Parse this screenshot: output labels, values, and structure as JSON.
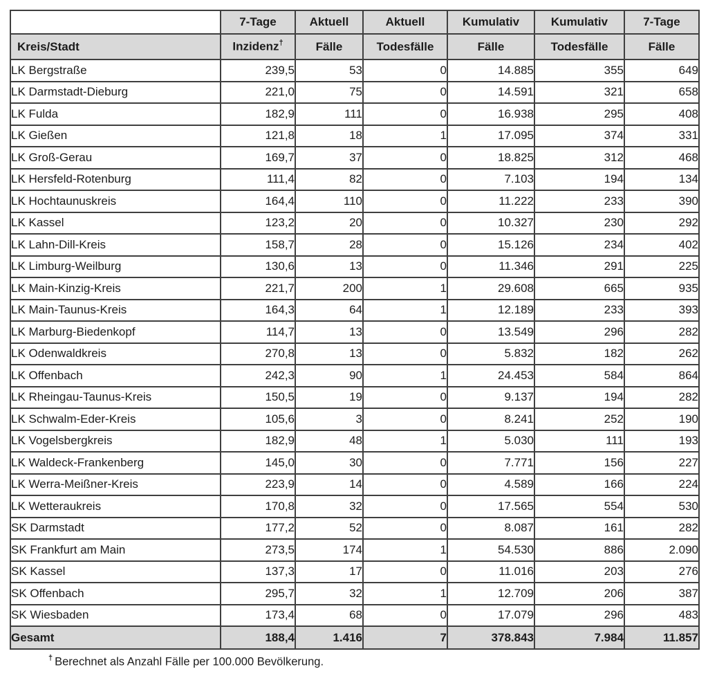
{
  "colors": {
    "header_bg": "#d9d9d9",
    "border": "#3f3f3f",
    "row_bg": "#ffffff",
    "text": "#1c1c1c"
  },
  "table": {
    "group_headers": [
      "7-Tage",
      "Aktuell",
      "Aktuell",
      "Kumulativ",
      "Kumulativ",
      "7-Tage"
    ],
    "sub_headers": {
      "name": "Kreis/Stadt",
      "cols": [
        "Inzidenz",
        "Fälle",
        "Todesfälle",
        "Fälle",
        "Todesfälle",
        "Fälle"
      ],
      "inzidenz_marker": "†"
    },
    "rows": [
      {
        "name": "LK Bergstraße",
        "values": [
          "239,5",
          "53",
          "0",
          "14.885",
          "355",
          "649"
        ]
      },
      {
        "name": "LK Darmstadt-Dieburg",
        "values": [
          "221,0",
          "75",
          "0",
          "14.591",
          "321",
          "658"
        ]
      },
      {
        "name": "LK Fulda",
        "values": [
          "182,9",
          "111",
          "0",
          "16.938",
          "295",
          "408"
        ]
      },
      {
        "name": "LK Gießen",
        "values": [
          "121,8",
          "18",
          "1",
          "17.095",
          "374",
          "331"
        ]
      },
      {
        "name": "LK Groß-Gerau",
        "values": [
          "169,7",
          "37",
          "0",
          "18.825",
          "312",
          "468"
        ]
      },
      {
        "name": "LK Hersfeld-Rotenburg",
        "values": [
          "111,4",
          "82",
          "0",
          "7.103",
          "194",
          "134"
        ]
      },
      {
        "name": "LK Hochtaunuskreis",
        "values": [
          "164,4",
          "110",
          "0",
          "11.222",
          "233",
          "390"
        ]
      },
      {
        "name": "LK Kassel",
        "values": [
          "123,2",
          "20",
          "0",
          "10.327",
          "230",
          "292"
        ]
      },
      {
        "name": "LK Lahn-Dill-Kreis",
        "values": [
          "158,7",
          "28",
          "0",
          "15.126",
          "234",
          "402"
        ]
      },
      {
        "name": "LK Limburg-Weilburg",
        "values": [
          "130,6",
          "13",
          "0",
          "11.346",
          "291",
          "225"
        ]
      },
      {
        "name": "LK Main-Kinzig-Kreis",
        "values": [
          "221,7",
          "200",
          "1",
          "29.608",
          "665",
          "935"
        ]
      },
      {
        "name": "LK Main-Taunus-Kreis",
        "values": [
          "164,3",
          "64",
          "1",
          "12.189",
          "233",
          "393"
        ]
      },
      {
        "name": "LK Marburg-Biedenkopf",
        "values": [
          "114,7",
          "13",
          "0",
          "13.549",
          "296",
          "282"
        ]
      },
      {
        "name": "LK Odenwaldkreis",
        "values": [
          "270,8",
          "13",
          "0",
          "5.832",
          "182",
          "262"
        ]
      },
      {
        "name": "LK Offenbach",
        "values": [
          "242,3",
          "90",
          "1",
          "24.453",
          "584",
          "864"
        ]
      },
      {
        "name": "LK Rheingau-Taunus-Kreis",
        "values": [
          "150,5",
          "19",
          "0",
          "9.137",
          "194",
          "282"
        ]
      },
      {
        "name": "LK Schwalm-Eder-Kreis",
        "values": [
          "105,6",
          "3",
          "0",
          "8.241",
          "252",
          "190"
        ]
      },
      {
        "name": "LK Vogelsbergkreis",
        "values": [
          "182,9",
          "48",
          "1",
          "5.030",
          "111",
          "193"
        ]
      },
      {
        "name": "LK Waldeck-Frankenberg",
        "values": [
          "145,0",
          "30",
          "0",
          "7.771",
          "156",
          "227"
        ]
      },
      {
        "name": "LK Werra-Meißner-Kreis",
        "values": [
          "223,9",
          "14",
          "0",
          "4.589",
          "166",
          "224"
        ]
      },
      {
        "name": "LK Wetteraukreis",
        "values": [
          "170,8",
          "32",
          "0",
          "17.565",
          "554",
          "530"
        ]
      },
      {
        "name": "SK Darmstadt",
        "values": [
          "177,2",
          "52",
          "0",
          "8.087",
          "161",
          "282"
        ]
      },
      {
        "name": "SK Frankfurt am Main",
        "values": [
          "273,5",
          "174",
          "1",
          "54.530",
          "886",
          "2.090"
        ]
      },
      {
        "name": "SK Kassel",
        "values": [
          "137,3",
          "17",
          "0",
          "11.016",
          "203",
          "276"
        ]
      },
      {
        "name": "SK Offenbach",
        "values": [
          "295,7",
          "32",
          "1",
          "12.709",
          "206",
          "387"
        ]
      },
      {
        "name": "SK Wiesbaden",
        "values": [
          "173,4",
          "68",
          "0",
          "17.079",
          "296",
          "483"
        ]
      }
    ],
    "total": {
      "name": "Gesamt",
      "values": [
        "188,4",
        "1.416",
        "7",
        "378.843",
        "7.984",
        "11.857"
      ]
    }
  },
  "footnote": {
    "marker": "†",
    "text": "Berechnet als Anzahl Fälle per 100.000 Bevölkerung."
  }
}
